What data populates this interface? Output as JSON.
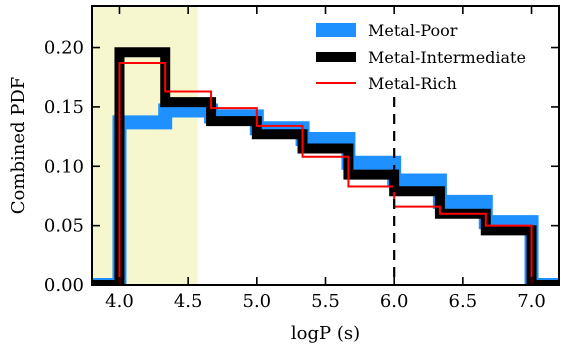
{
  "chart_data": {
    "type": "line",
    "xlabel": "logP (s)",
    "ylabel": "Combined PDF",
    "xlim": [
      3.8,
      7.2
    ],
    "ylim": [
      0.0,
      0.235
    ],
    "xticks": [
      "4.0",
      "4.5",
      "5.0",
      "5.5",
      "6.0",
      "6.5",
      "7.0"
    ],
    "yticks": [
      "0.00",
      "0.05",
      "0.10",
      "0.15",
      "0.20"
    ],
    "grid": false,
    "legend_position": "top-right",
    "shaded_region": {
      "x": [
        3.8,
        4.57
      ],
      "color": "#f7f7cf"
    },
    "vertical_line": {
      "x": 6.0,
      "style": "dashed",
      "color": "#000000"
    },
    "bin_edges": [
      3.8,
      4.0,
      4.333,
      4.667,
      5.0,
      5.333,
      5.667,
      6.0,
      6.333,
      6.667,
      7.0,
      7.2
    ],
    "series": [
      {
        "name": "Metal-Poor",
        "color": "#1e90ff",
        "values": [
          0.0,
          0.137,
          0.147,
          0.142,
          0.132,
          0.123,
          0.103,
          0.088,
          0.07,
          0.053,
          0.0
        ]
      },
      {
        "name": "Metal-Intermediate",
        "color": "#000000",
        "values": [
          0.0,
          0.196,
          0.154,
          0.138,
          0.127,
          0.115,
          0.093,
          0.079,
          0.06,
          0.046,
          0.0
        ]
      },
      {
        "name": "Metal-Rich",
        "color": "#ff0000",
        "values": [
          0.0,
          0.187,
          0.163,
          0.149,
          0.134,
          0.108,
          0.083,
          0.066,
          0.06,
          0.05,
          0.0
        ]
      }
    ]
  }
}
